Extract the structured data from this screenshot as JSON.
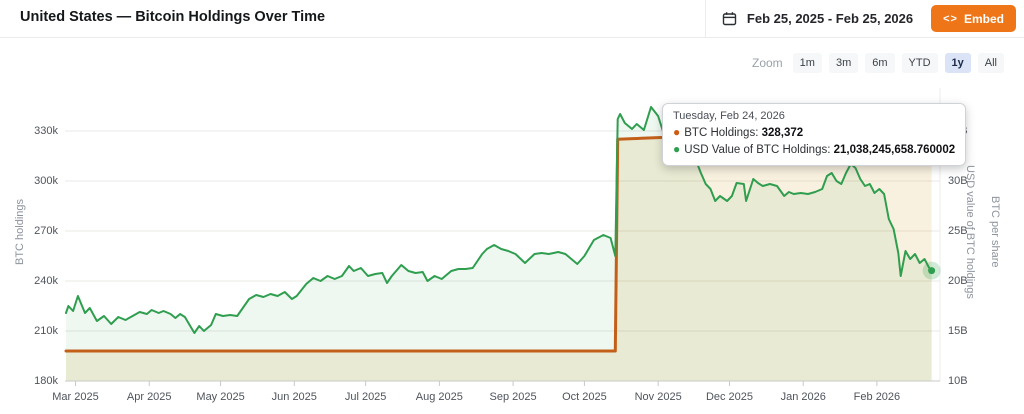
{
  "header": {
    "title": "United States — Bitcoin Holdings Over Time",
    "date_range": "Feb 25, 2025 - Feb 25, 2026",
    "calendar_icon": "calendar-icon",
    "embed_icon": "<>",
    "embed_label": "Embed"
  },
  "toolbar": {
    "zoom_label": "Zoom",
    "ranges": [
      {
        "label": "1m",
        "active": false
      },
      {
        "label": "3m",
        "active": false
      },
      {
        "label": "6m",
        "active": false
      },
      {
        "label": "YTD",
        "active": false
      },
      {
        "label": "1y",
        "active": true
      },
      {
        "label": "All",
        "active": false
      }
    ]
  },
  "tooltip": {
    "title": "Tuesday, Feb 24, 2026",
    "rows": [
      {
        "label": "BTC Holdings",
        "value": "328,372",
        "color": "#cf5c16"
      },
      {
        "label": "USD Value of BTC Holdings",
        "value": "21,038,245,658.760002",
        "color": "#2f9e4f"
      }
    ]
  },
  "chart_data": {
    "type": "line",
    "title": "United States — Bitcoin Holdings Over Time",
    "x_range": [
      "2025-02-25",
      "2026-02-25"
    ],
    "grid": true,
    "axes": {
      "left": {
        "label": "BTC holdings",
        "ylim": [
          180000,
          330000
        ],
        "ticks": [
          {
            "label": "330k",
            "value": 330000
          },
          {
            "label": "300k",
            "value": 300000
          },
          {
            "label": "270k",
            "value": 270000
          },
          {
            "label": "240k",
            "value": 240000
          },
          {
            "label": "210k",
            "value": 210000
          },
          {
            "label": "180k",
            "value": 180000
          }
        ]
      },
      "right": {
        "label": "USD value of BTC holdings",
        "label2": "BTC per share",
        "ylim": [
          10,
          35
        ],
        "unit": "B",
        "ticks": [
          {
            "label": "35B",
            "value": 35
          },
          {
            "label": "30B",
            "value": 30
          },
          {
            "label": "25B",
            "value": 25
          },
          {
            "label": "20B",
            "value": 20
          },
          {
            "label": "15B",
            "value": 15
          },
          {
            "label": "10B",
            "value": 10
          }
        ]
      }
    },
    "x_ticks": [
      {
        "label": "Mar 2025",
        "date": "2025-03-01"
      },
      {
        "label": "Apr 2025",
        "date": "2025-04-01"
      },
      {
        "label": "May 2025",
        "date": "2025-05-01"
      },
      {
        "label": "Jun 2025",
        "date": "2025-06-01"
      },
      {
        "label": "Jul 2025",
        "date": "2025-07-01"
      },
      {
        "label": "Aug 2025",
        "date": "2025-08-01"
      },
      {
        "label": "Sep 2025",
        "date": "2025-09-01"
      },
      {
        "label": "Oct 2025",
        "date": "2025-10-01"
      },
      {
        "label": "Nov 2025",
        "date": "2025-11-01"
      },
      {
        "label": "Dec 2025",
        "date": "2025-12-01"
      },
      {
        "label": "Jan 2026",
        "date": "2026-01-01"
      },
      {
        "label": "Feb 2026",
        "date": "2026-02-01"
      }
    ],
    "series": [
      {
        "name": "BTC Holdings",
        "axis": "left",
        "color": "#cf5c16",
        "width": 3,
        "fill": "rgba(214,158,26,0.14)",
        "halo": "rgba(207,92,22,0.25)",
        "points": [
          [
            "2025-02-25",
            198012
          ],
          [
            "2025-10-14",
            198012
          ],
          [
            "2025-10-15",
            325000
          ],
          [
            "2025-10-25",
            325600
          ],
          [
            "2025-11-05",
            326300
          ],
          [
            "2025-11-20",
            326900
          ],
          [
            "2025-12-10",
            327300
          ],
          [
            "2026-01-05",
            327800
          ],
          [
            "2026-01-25",
            328100
          ],
          [
            "2026-02-24",
            328372
          ]
        ]
      },
      {
        "name": "USD Value of BTC Holdings",
        "axis": "right",
        "color": "#2f9e4f",
        "width": 2,
        "fill": "rgba(47,158,79,0.08)",
        "halo": "rgba(47,158,79,0.22)",
        "points": [
          [
            "2025-02-25",
            16.8
          ],
          [
            "2025-02-26",
            17.5
          ],
          [
            "2025-02-28",
            17.0
          ],
          [
            "2025-03-02",
            18.5
          ],
          [
            "2025-03-05",
            16.8
          ],
          [
            "2025-03-07",
            17.3
          ],
          [
            "2025-03-10",
            16.0
          ],
          [
            "2025-03-13",
            16.5
          ],
          [
            "2025-03-16",
            15.7
          ],
          [
            "2025-03-19",
            16.4
          ],
          [
            "2025-03-22",
            16.1
          ],
          [
            "2025-03-25",
            16.5
          ],
          [
            "2025-03-28",
            16.9
          ],
          [
            "2025-03-31",
            16.7
          ],
          [
            "2025-04-02",
            17.1
          ],
          [
            "2025-04-05",
            16.8
          ],
          [
            "2025-04-07",
            17.0
          ],
          [
            "2025-04-10",
            16.7
          ],
          [
            "2025-04-12",
            16.3
          ],
          [
            "2025-04-14",
            16.7
          ],
          [
            "2025-04-16",
            16.4
          ],
          [
            "2025-04-19",
            15.2
          ],
          [
            "2025-04-20",
            14.8
          ],
          [
            "2025-04-22",
            15.5
          ],
          [
            "2025-04-24",
            15.0
          ],
          [
            "2025-04-27",
            15.6
          ],
          [
            "2025-04-29",
            16.7
          ],
          [
            "2025-05-02",
            16.5
          ],
          [
            "2025-05-05",
            16.6
          ],
          [
            "2025-05-08",
            16.5
          ],
          [
            "2025-05-13",
            18.2
          ],
          [
            "2025-05-16",
            18.6
          ],
          [
            "2025-05-19",
            18.4
          ],
          [
            "2025-05-22",
            18.7
          ],
          [
            "2025-05-25",
            18.5
          ],
          [
            "2025-05-28",
            18.9
          ],
          [
            "2025-05-31",
            18.2
          ],
          [
            "2025-06-02",
            18.5
          ],
          [
            "2025-06-06",
            19.7
          ],
          [
            "2025-06-09",
            20.3
          ],
          [
            "2025-06-12",
            20.0
          ],
          [
            "2025-06-15",
            20.5
          ],
          [
            "2025-06-18",
            20.2
          ],
          [
            "2025-06-21",
            20.5
          ],
          [
            "2025-06-24",
            21.5
          ],
          [
            "2025-06-26",
            21.0
          ],
          [
            "2025-06-29",
            21.3
          ],
          [
            "2025-07-02",
            20.5
          ],
          [
            "2025-07-05",
            20.7
          ],
          [
            "2025-07-08",
            20.8
          ],
          [
            "2025-07-10",
            19.8
          ],
          [
            "2025-07-12",
            20.5
          ],
          [
            "2025-07-16",
            21.6
          ],
          [
            "2025-07-19",
            21.0
          ],
          [
            "2025-07-22",
            20.8
          ],
          [
            "2025-07-25",
            20.9
          ],
          [
            "2025-07-27",
            20.0
          ],
          [
            "2025-07-30",
            20.5
          ],
          [
            "2025-08-02",
            20.2
          ],
          [
            "2025-08-06",
            21.0
          ],
          [
            "2025-08-09",
            21.2
          ],
          [
            "2025-08-12",
            21.2
          ],
          [
            "2025-08-15",
            21.3
          ],
          [
            "2025-08-19",
            22.7
          ],
          [
            "2025-08-21",
            23.2
          ],
          [
            "2025-08-24",
            23.6
          ],
          [
            "2025-08-27",
            23.2
          ],
          [
            "2025-08-30",
            23.0
          ],
          [
            "2025-09-02",
            22.7
          ],
          [
            "2025-09-06",
            21.8
          ],
          [
            "2025-09-10",
            22.7
          ],
          [
            "2025-09-13",
            22.8
          ],
          [
            "2025-09-16",
            22.7
          ],
          [
            "2025-09-20",
            22.9
          ],
          [
            "2025-09-23",
            22.7
          ],
          [
            "2025-09-28",
            21.7
          ],
          [
            "2025-10-01",
            22.5
          ],
          [
            "2025-10-05",
            24.1
          ],
          [
            "2025-10-09",
            24.6
          ],
          [
            "2025-10-12",
            24.3
          ],
          [
            "2025-10-14",
            22.5
          ],
          [
            "2025-10-15",
            36.2
          ],
          [
            "2025-10-16",
            36.7
          ],
          [
            "2025-10-18",
            35.8
          ],
          [
            "2025-10-21",
            35.2
          ],
          [
            "2025-10-23",
            35.7
          ],
          [
            "2025-10-26",
            35.1
          ],
          [
            "2025-10-29",
            37.4
          ],
          [
            "2025-11-01",
            36.5
          ],
          [
            "2025-11-03",
            35.0
          ],
          [
            "2025-11-05",
            35.6
          ],
          [
            "2025-11-08",
            34.5
          ],
          [
            "2025-11-11",
            33.5
          ],
          [
            "2025-11-14",
            32.8
          ],
          [
            "2025-11-17",
            32.0
          ],
          [
            "2025-11-19",
            30.8
          ],
          [
            "2025-11-21",
            29.7
          ],
          [
            "2025-11-23",
            29.2
          ],
          [
            "2025-11-25",
            28.0
          ],
          [
            "2025-11-27",
            28.5
          ],
          [
            "2025-11-30",
            28.0
          ],
          [
            "2025-12-02",
            28.5
          ],
          [
            "2025-12-04",
            29.8
          ],
          [
            "2025-12-07",
            29.7
          ],
          [
            "2025-12-08",
            28.0
          ],
          [
            "2025-12-11",
            30.2
          ],
          [
            "2025-12-13",
            29.8
          ],
          [
            "2025-12-15",
            29.5
          ],
          [
            "2025-12-18",
            29.7
          ],
          [
            "2025-12-21",
            29.5
          ],
          [
            "2025-12-24",
            28.5
          ],
          [
            "2025-12-26",
            28.9
          ],
          [
            "2025-12-28",
            28.7
          ],
          [
            "2025-12-31",
            28.8
          ],
          [
            "2026-01-03",
            28.7
          ],
          [
            "2026-01-06",
            28.9
          ],
          [
            "2026-01-09",
            29.2
          ],
          [
            "2026-01-11",
            30.5
          ],
          [
            "2026-01-13",
            30.8
          ],
          [
            "2026-01-15",
            30.0
          ],
          [
            "2026-01-17",
            29.7
          ],
          [
            "2026-01-19",
            30.8
          ],
          [
            "2026-01-21",
            31.7
          ],
          [
            "2026-01-23",
            31.3
          ],
          [
            "2026-01-25",
            30.2
          ],
          [
            "2026-01-27",
            29.5
          ],
          [
            "2026-01-29",
            29.7
          ],
          [
            "2026-01-31",
            28.8
          ],
          [
            "2026-02-02",
            29.2
          ],
          [
            "2026-02-04",
            28.7
          ],
          [
            "2026-02-06",
            26.2
          ],
          [
            "2026-02-08",
            25.2
          ],
          [
            "2026-02-10",
            22.8
          ],
          [
            "2026-02-11",
            20.5
          ],
          [
            "2026-02-13",
            23.0
          ],
          [
            "2026-02-15",
            22.2
          ],
          [
            "2026-02-17",
            22.7
          ],
          [
            "2026-02-19",
            21.8
          ],
          [
            "2026-02-21",
            22.2
          ],
          [
            "2026-02-23",
            21.3
          ],
          [
            "2026-02-24",
            21.04
          ]
        ]
      }
    ]
  }
}
